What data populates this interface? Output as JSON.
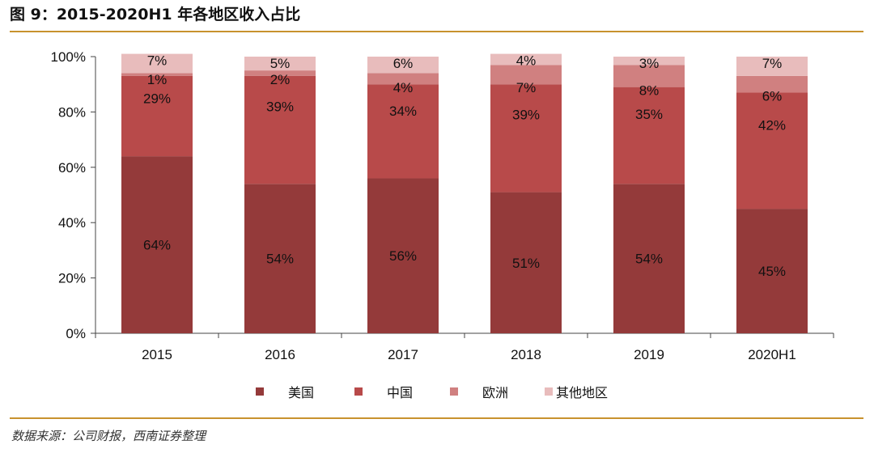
{
  "header": {
    "title": "图 9：2015-2020H1 年各地区收入占比"
  },
  "footer": {
    "source": "数据来源：公司财报，西南证券整理"
  },
  "chart_data": {
    "type": "bar",
    "stacked": true,
    "categories": [
      "2015",
      "2016",
      "2017",
      "2018",
      "2019",
      "2020H1"
    ],
    "series": [
      {
        "name": "美国",
        "values": [
          64,
          54,
          56,
          51,
          54,
          45
        ],
        "labels": [
          "64%",
          "54%",
          "56%",
          "51%",
          "54%",
          "45%"
        ],
        "color": "#943a3a"
      },
      {
        "name": "中国",
        "values": [
          29,
          39,
          34,
          39,
          35,
          42
        ],
        "labels": [
          "29%",
          "39%",
          "34%",
          "39%",
          "35%",
          "42%"
        ],
        "color": "#b84a4a"
      },
      {
        "name": "欧洲",
        "values": [
          1,
          2,
          4,
          7,
          8,
          6
        ],
        "labels": [
          "1%",
          "2%",
          "4%",
          "7%",
          "8%",
          "6%"
        ],
        "color": "#d08080"
      },
      {
        "name": "其他地区",
        "values": [
          7,
          5,
          6,
          4,
          3,
          7
        ],
        "labels": [
          "7%",
          "5%",
          "6%",
          "4%",
          "3%",
          "7%"
        ],
        "color": "#e8bcbc"
      }
    ],
    "yticks": [
      "0%",
      "20%",
      "40%",
      "60%",
      "80%",
      "100%"
    ],
    "ylim": [
      0,
      100
    ],
    "legend_position": "bottom",
    "grid": false
  }
}
